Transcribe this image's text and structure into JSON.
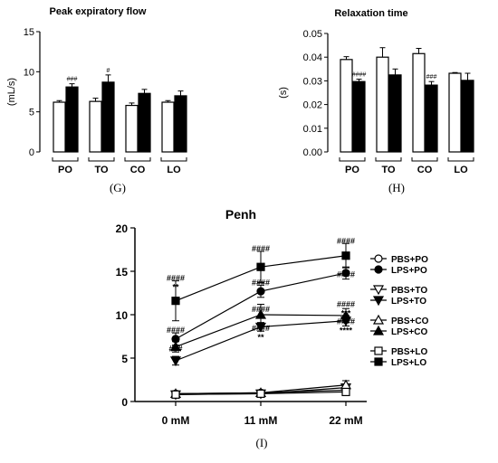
{
  "chart_data": [
    {
      "panel": "(G)",
      "type": "bar",
      "title": "Peak expiratory flow",
      "ylabel": "(mL/s)",
      "ylim": [
        0,
        15
      ],
      "yticks": [
        0,
        5,
        10,
        15
      ],
      "categories": [
        "PO",
        "TO",
        "CO",
        "LO"
      ],
      "series": [
        {
          "color": "#ffffff",
          "values": [
            6.2,
            6.3,
            5.8,
            6.2
          ],
          "err": [
            0.2,
            0.4,
            0.3,
            0.2
          ]
        },
        {
          "color": "#000000",
          "values": [
            8.1,
            8.7,
            7.3,
            7.0
          ],
          "err": [
            0.4,
            0.9,
            0.5,
            0.6
          ]
        }
      ],
      "annotations": [
        {
          "category": "PO",
          "series": 1,
          "text": "###"
        },
        {
          "category": "TO",
          "series": 1,
          "text": "#"
        }
      ]
    },
    {
      "panel": "(H)",
      "type": "bar",
      "title": "Relaxation time",
      "ylabel": "(s)",
      "ylim": [
        0,
        0.05
      ],
      "yticks": [
        "0.00",
        "0.01",
        "0.02",
        "0.03",
        "0.04",
        "0.05"
      ],
      "categories": [
        "PO",
        "TO",
        "CO",
        "LO"
      ],
      "series": [
        {
          "color": "#ffffff",
          "values": [
            0.039,
            0.04,
            0.0415,
            0.0332
          ],
          "err": [
            0.0012,
            0.004,
            0.0022,
            0.0003
          ]
        },
        {
          "color": "#000000",
          "values": [
            0.0297,
            0.0325,
            0.0282,
            0.0302
          ],
          "err": [
            0.001,
            0.0025,
            0.0015,
            0.003
          ]
        }
      ],
      "annotations": [
        {
          "category": "PO",
          "series": 1,
          "text": "####"
        },
        {
          "category": "CO",
          "series": 1,
          "text": "###"
        }
      ]
    },
    {
      "panel": "(I)",
      "type": "line",
      "title": "Penh",
      "ylim": [
        0,
        20
      ],
      "yticks": [
        0,
        5,
        10,
        15,
        20
      ],
      "x": [
        "0 mM",
        "11 mM",
        "22 mM"
      ],
      "series": [
        {
          "name": "PBS+PO",
          "marker": "circle",
          "filled": false,
          "values": [
            0.9,
            1.0,
            1.3
          ],
          "err": [
            0.2,
            0.2,
            0.3
          ]
        },
        {
          "name": "LPS+PO",
          "marker": "circle",
          "filled": true,
          "values": [
            7.2,
            12.7,
            14.8
          ],
          "err": [
            0.7,
            0.7,
            0.7
          ]
        },
        {
          "name": "PBS+TO",
          "marker": "tri-down",
          "filled": false,
          "values": [
            0.8,
            0.9,
            1.6
          ],
          "err": [
            0.2,
            0.2,
            0.4
          ]
        },
        {
          "name": "LPS+TO",
          "marker": "tri-down",
          "filled": true,
          "values": [
            4.7,
            8.6,
            9.3
          ],
          "err": [
            0.5,
            0.5,
            0.6
          ]
        },
        {
          "name": "PBS+CO",
          "marker": "tri-up",
          "filled": false,
          "values": [
            0.9,
            1.0,
            1.9
          ],
          "err": [
            0.2,
            0.2,
            0.5
          ]
        },
        {
          "name": "LPS+CO",
          "marker": "tri-up",
          "filled": true,
          "values": [
            6.3,
            10.0,
            9.9
          ],
          "err": [
            0.6,
            1.2,
            0.8
          ]
        },
        {
          "name": "PBS+LO",
          "marker": "square",
          "filled": false,
          "values": [
            0.8,
            0.9,
            1.1
          ],
          "err": [
            0.2,
            0.2,
            0.3
          ]
        },
        {
          "name": "LPS+LO",
          "marker": "square",
          "filled": true,
          "values": [
            11.6,
            15.5,
            16.8
          ],
          "err": [
            2.3,
            1.8,
            1.4
          ]
        }
      ],
      "annotations": [
        {
          "xi": 0,
          "y": 13.9,
          "lines": [
            "####",
            "**"
          ]
        },
        {
          "xi": 0,
          "y": 7.9,
          "lines": [
            "####"
          ]
        },
        {
          "xi": 0,
          "y": 5.8,
          "lines": [
            "###"
          ]
        },
        {
          "xi": 1,
          "y": 17.3,
          "lines": [
            "####"
          ]
        },
        {
          "xi": 1,
          "y": 13.4,
          "lines": [
            "####"
          ]
        },
        {
          "xi": 1,
          "y": 10.3,
          "lines": [
            "####"
          ]
        },
        {
          "xi": 1,
          "y": 8.1,
          "lines": [
            "####",
            "**"
          ]
        },
        {
          "xi": 2,
          "y": 18.2,
          "lines": [
            "####"
          ]
        },
        {
          "xi": 2,
          "y": 14.3,
          "lines": [
            "####"
          ]
        },
        {
          "xi": 2,
          "y": 10.9,
          "lines": [
            "####",
            "***"
          ]
        },
        {
          "xi": 2,
          "y": 8.9,
          "lines": [
            "####",
            "****"
          ]
        }
      ]
    }
  ]
}
